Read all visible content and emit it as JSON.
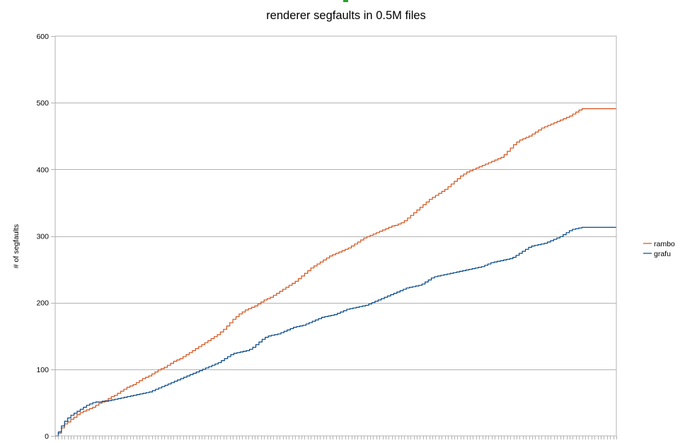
{
  "chart_data": {
    "type": "line",
    "title": "renderer segfaults in 0.5M files",
    "xlabel": "",
    "ylabel": "# of segfaults",
    "ylim": [
      0,
      600
    ],
    "yticks": [
      0,
      100,
      200,
      300,
      400,
      500,
      600
    ],
    "grid": true,
    "legend": "right",
    "x_points": 180,
    "x_tick_labels": "none",
    "series": [
      {
        "name": "rambo",
        "color": "#d4521c",
        "values": [
          0,
          4,
          12,
          18,
          21,
          25,
          28,
          32,
          35,
          37,
          39,
          41,
          43,
          46,
          49,
          51,
          53,
          56,
          59,
          61,
          64,
          67,
          70,
          73,
          75,
          77,
          80,
          83,
          86,
          88,
          90,
          93,
          96,
          99,
          101,
          103,
          106,
          109,
          112,
          114,
          116,
          119,
          122,
          125,
          128,
          131,
          134,
          137,
          140,
          143,
          146,
          149,
          152,
          156,
          160,
          165,
          170,
          175,
          179,
          183,
          186,
          189,
          191,
          193,
          195,
          198,
          201,
          204,
          206,
          208,
          211,
          214,
          217,
          220,
          223,
          226,
          229,
          232,
          236,
          240,
          244,
          248,
          252,
          255,
          258,
          261,
          264,
          267,
          270,
          272,
          274,
          276,
          278,
          280,
          282,
          285,
          288,
          291,
          294,
          297,
          299,
          301,
          303,
          305,
          307,
          309,
          311,
          313,
          315,
          316,
          318,
          320,
          323,
          327,
          331,
          335,
          339,
          343,
          347,
          351,
          355,
          358,
          361,
          364,
          367,
          370,
          374,
          378,
          382,
          386,
          390,
          393,
          396,
          398,
          400,
          402,
          404,
          406,
          408,
          410,
          412,
          414,
          416,
          418,
          422,
          427,
          432,
          437,
          441,
          444,
          446,
          448,
          450,
          453,
          456,
          459,
          462,
          464,
          466,
          468,
          470,
          472,
          474,
          476,
          478,
          480,
          483,
          486,
          489,
          491,
          491,
          491,
          491,
          491,
          491,
          491,
          491,
          491,
          491,
          491,
          491
        ]
      },
      {
        "name": "grafu",
        "color": "#004586",
        "values": [
          0,
          6,
          15,
          22,
          27,
          31,
          34,
          37,
          40,
          43,
          46,
          48,
          50,
          51,
          51,
          52,
          52,
          53,
          54,
          55,
          56,
          57,
          58,
          59,
          60,
          61,
          62,
          63,
          64,
          65,
          66,
          68,
          70,
          72,
          74,
          76,
          78,
          80,
          82,
          84,
          86,
          88,
          90,
          92,
          94,
          96,
          98,
          100,
          102,
          104,
          106,
          108,
          110,
          113,
          116,
          119,
          122,
          124,
          125,
          126,
          127,
          128,
          130,
          133,
          137,
          141,
          145,
          148,
          150,
          151,
          152,
          153,
          155,
          157,
          159,
          161,
          163,
          164,
          165,
          166,
          168,
          170,
          172,
          174,
          176,
          178,
          179,
          180,
          181,
          182,
          184,
          186,
          188,
          190,
          191,
          192,
          193,
          194,
          195,
          196,
          198,
          200,
          202,
          204,
          206,
          208,
          210,
          212,
          214,
          216,
          218,
          220,
          222,
          223,
          224,
          225,
          226,
          228,
          231,
          234,
          237,
          239,
          240,
          241,
          242,
          243,
          244,
          245,
          246,
          247,
          248,
          249,
          250,
          251,
          252,
          253,
          254,
          256,
          258,
          260,
          261,
          262,
          263,
          264,
          265,
          266,
          268,
          271,
          274,
          277,
          280,
          283,
          285,
          286,
          287,
          288,
          289,
          291,
          293,
          295,
          297,
          299,
          302,
          305,
          308,
          310,
          311,
          312,
          313,
          313,
          313,
          313,
          313,
          313,
          313,
          313,
          313,
          313,
          313,
          313
        ]
      }
    ]
  }
}
